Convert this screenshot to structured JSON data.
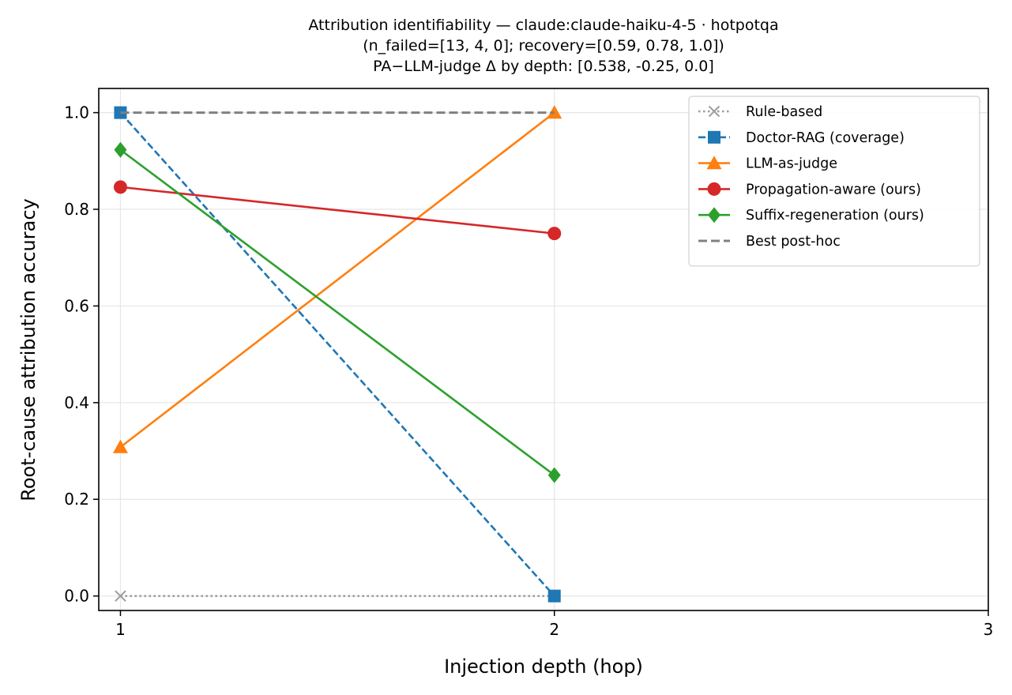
{
  "chart_data": {
    "type": "line",
    "title": [
      "Attribution identifiability — claude:claude-haiku-4-5 · hotpotqa",
      "(n_failed=[13, 4, 0]; recovery=[0.59, 0.78, 1.0])",
      "PA−LLM-judge Δ by depth: [0.538, -0.25, 0.0]"
    ],
    "xlabel": "Injection depth (hop)",
    "ylabel": "Root-cause attribution accuracy",
    "xlim": [
      0.95,
      3.0
    ],
    "ylim": [
      -0.03,
      1.05
    ],
    "xticks": [
      1,
      2,
      3
    ],
    "xtick_labels": [
      "1",
      "2",
      "3"
    ],
    "yticks": [
      0.0,
      0.2,
      0.4,
      0.6,
      0.8,
      1.0
    ],
    "ytick_labels": [
      "0.0",
      "0.2",
      "0.4",
      "0.6",
      "0.8",
      "1.0"
    ],
    "grid": true,
    "legend_position": "top-right",
    "series": [
      {
        "name": "Rule-based",
        "x": [
          1,
          2
        ],
        "y": [
          0.0,
          0.0
        ],
        "color": "#9e9e9e",
        "dash": "dotted",
        "marker": "x"
      },
      {
        "name": "Doctor-RAG (coverage)",
        "x": [
          1,
          2
        ],
        "y": [
          1.0,
          0.0
        ],
        "color": "#1f77b4",
        "dash": "dashed",
        "marker": "square"
      },
      {
        "name": "LLM-as-judge",
        "x": [
          1,
          2
        ],
        "y": [
          0.308,
          1.0
        ],
        "color": "#ff7f0e",
        "dash": "solid",
        "marker": "triangle"
      },
      {
        "name": "Propagation-aware (ours)",
        "x": [
          1,
          2
        ],
        "y": [
          0.846,
          0.75
        ],
        "color": "#d62728",
        "dash": "solid",
        "marker": "circle"
      },
      {
        "name": "Suffix-regeneration (ours)",
        "x": [
          1,
          2
        ],
        "y": [
          0.923,
          0.25
        ],
        "color": "#2ca02c",
        "dash": "solid",
        "marker": "diamond"
      },
      {
        "name": "Best post-hoc",
        "x": [
          1,
          2
        ],
        "y": [
          1.0,
          1.0
        ],
        "color": "#808080",
        "dash": "longdash",
        "marker": "none"
      }
    ]
  }
}
